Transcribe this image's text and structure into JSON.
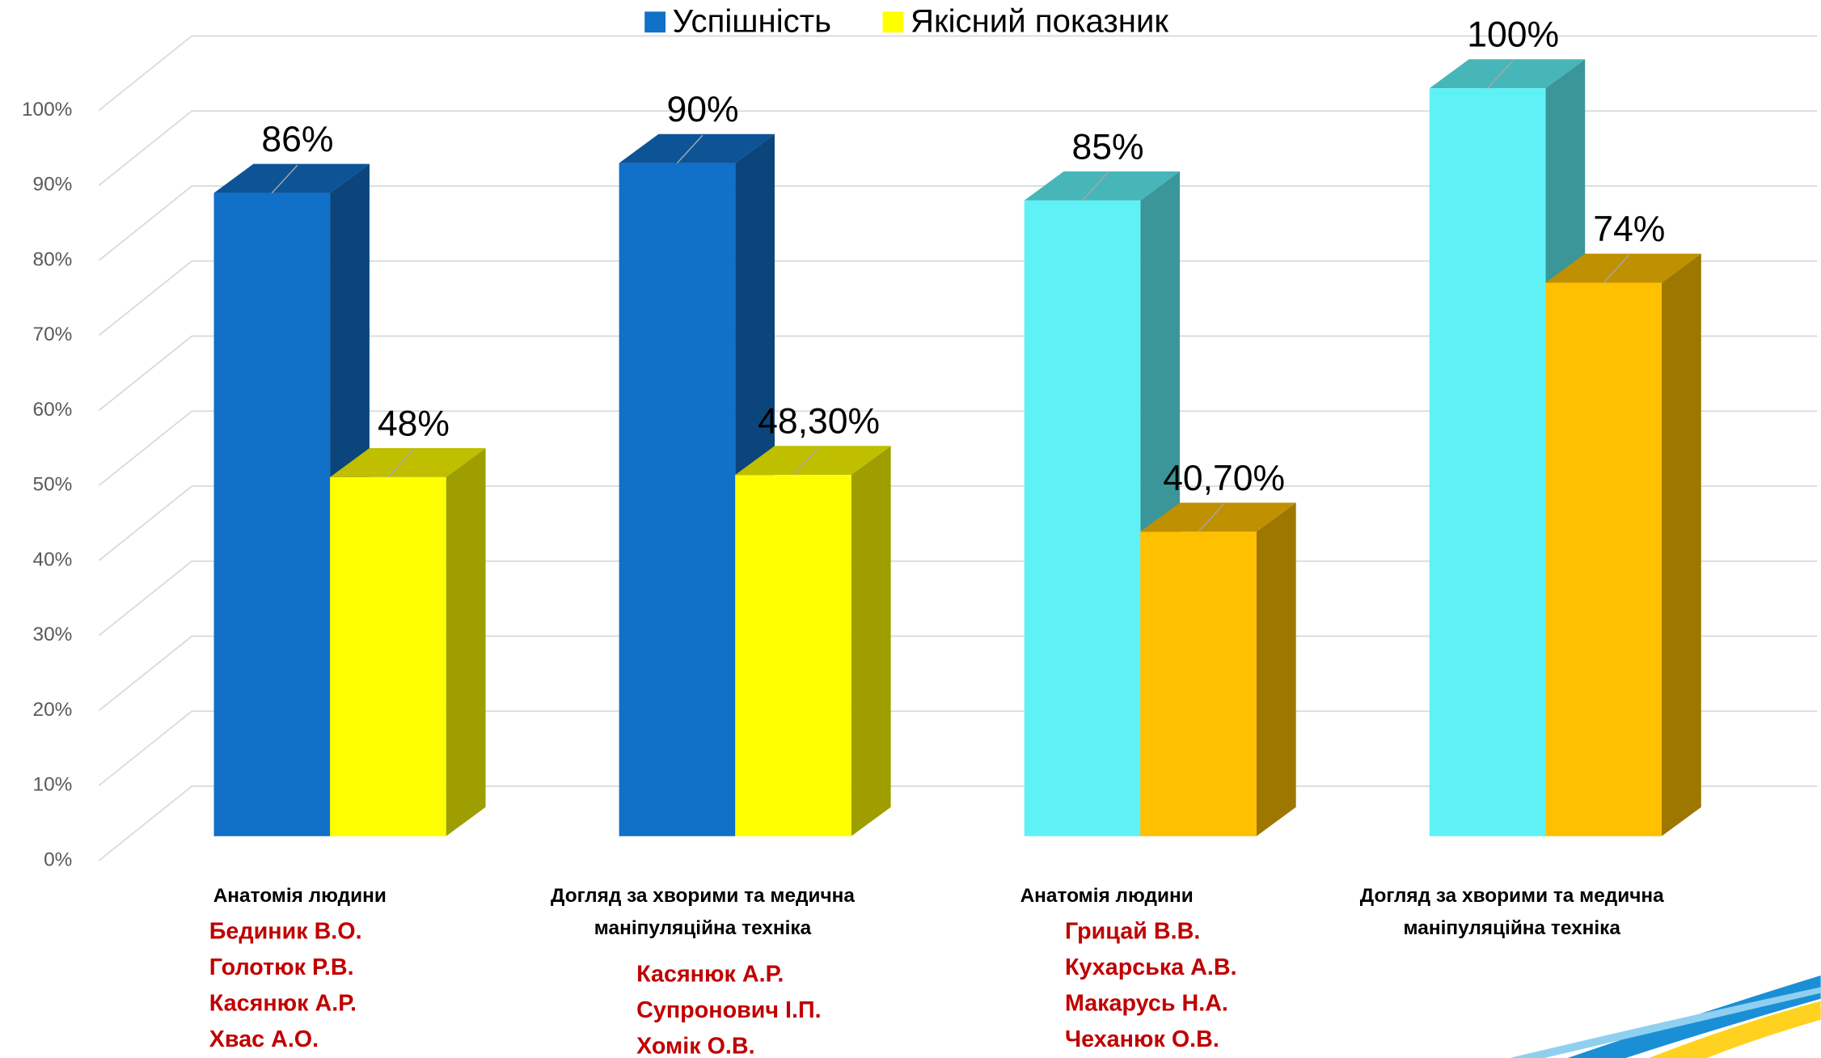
{
  "chart_data": {
    "type": "bar3d",
    "categories": [
      [
        "Анатомія людини"
      ],
      [
        "Догляд за хворими та медична",
        "маніпуляційна техніка"
      ],
      [
        "Анатомія людини"
      ],
      [
        "Догляд за хворими та медична",
        "маніпуляційна техніка"
      ]
    ],
    "category_names": [
      [
        "Бединик В.О.",
        "Голотюк Р.В.",
        "Касянюк А.Р.",
        "Хвас А.О."
      ],
      [
        "Касянюк А.Р.",
        "Супронович І.П.",
        "Хомік О.В."
      ],
      [
        "Грицай В.В.",
        "Кухарська А.В.",
        "Макарусь Н.А.",
        "Чеханюк О.В."
      ],
      []
    ],
    "series": [
      {
        "name": "Успішність",
        "color": "#1170c8",
        "point_colors": [
          "#1170c8",
          "#1170c8",
          "#5ef2f7",
          "#5ef2f7"
        ],
        "values": [
          86,
          90,
          85,
          100
        ],
        "value_labels": [
          "86%",
          "90%",
          "85%",
          "100%"
        ]
      },
      {
        "name": "Якісний показник",
        "color": "#ffff00",
        "point_colors": [
          "#ffff00",
          "#ffff00",
          "#ffc000",
          "#ffc000"
        ],
        "values": [
          48,
          48.3,
          40.7,
          74
        ],
        "value_labels": [
          "48%",
          "48,30%",
          "40,70%",
          "74%"
        ]
      }
    ],
    "ylim": [
      0,
      100
    ],
    "yticks": [
      {
        "value": 0,
        "label": "0%"
      },
      {
        "value": 10,
        "label": "10%"
      },
      {
        "value": 20,
        "label": "20%"
      },
      {
        "value": 30,
        "label": "30%"
      },
      {
        "value": 40,
        "label": "40%"
      },
      {
        "value": 50,
        "label": "50%"
      },
      {
        "value": 60,
        "label": "60%"
      },
      {
        "value": 70,
        "label": "70%"
      },
      {
        "value": 80,
        "label": "80%"
      },
      {
        "value": 90,
        "label": "90%"
      },
      {
        "value": 100,
        "label": "100%"
      }
    ],
    "grid": true,
    "legend": "top"
  }
}
